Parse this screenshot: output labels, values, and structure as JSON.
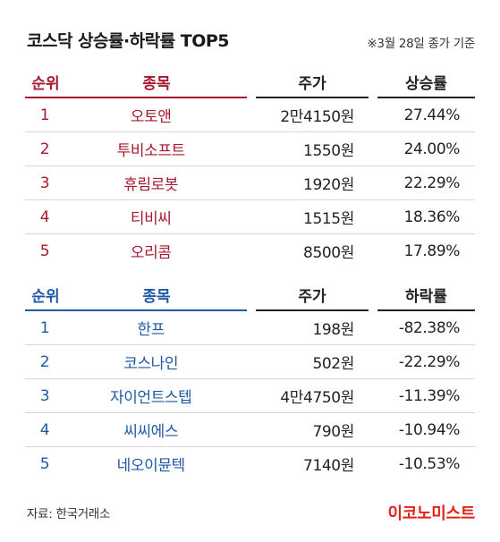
{
  "title": "코스닥 상승률·하락률 TOP5",
  "note": "※3월 28일 종가 기준",
  "colors": {
    "gain_accent": "#a6192e",
    "loss_accent": "#1f5aa6",
    "brand": "#e2231a"
  },
  "gainers": {
    "headers": {
      "rank": "순위",
      "name": "종목",
      "price": "주가",
      "change": "상승률"
    },
    "rows": [
      {
        "rank": "1",
        "name": "오토앤",
        "price": "2만4150원",
        "change": "27.44%"
      },
      {
        "rank": "2",
        "name": "투비소프트",
        "price": "1550원",
        "change": "24.00%"
      },
      {
        "rank": "3",
        "name": "휴림로봇",
        "price": "1920원",
        "change": "22.29%"
      },
      {
        "rank": "4",
        "name": "티비씨",
        "price": "1515원",
        "change": "18.36%"
      },
      {
        "rank": "5",
        "name": "오리콤",
        "price": "8500원",
        "change": "17.89%"
      }
    ]
  },
  "losers": {
    "headers": {
      "rank": "순위",
      "name": "종목",
      "price": "주가",
      "change": "하락률"
    },
    "rows": [
      {
        "rank": "1",
        "name": "한프",
        "price": "198원",
        "change": "-82.38%"
      },
      {
        "rank": "2",
        "name": "코스나인",
        "price": "502원",
        "change": "-22.29%"
      },
      {
        "rank": "3",
        "name": "자이언트스텝",
        "price": "4만4750원",
        "change": "-11.39%"
      },
      {
        "rank": "4",
        "name": "씨씨에스",
        "price": "790원",
        "change": "-10.94%"
      },
      {
        "rank": "5",
        "name": "네오이뮨텍",
        "price": "7140원",
        "change": "-10.53%"
      }
    ]
  },
  "source": "자료: 한국거래소",
  "brand": "이코노미스트"
}
